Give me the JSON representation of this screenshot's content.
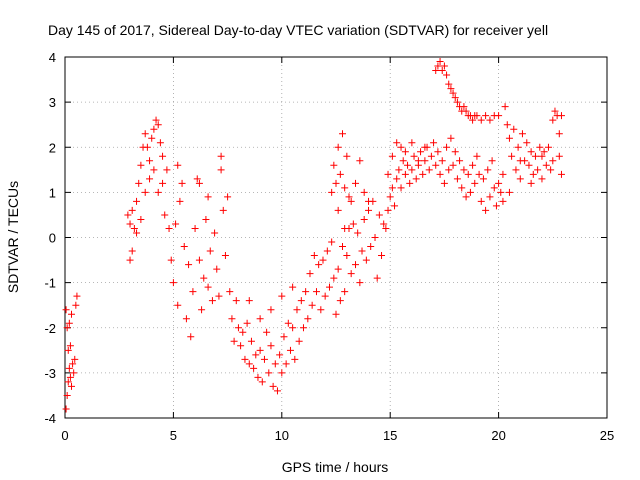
{
  "chart_data": {
    "type": "scatter",
    "title": "Day 145 of 2017, Sidereal Day-to-day VTEC variation (SDTVAR) for receiver yell",
    "xlabel": "GPS time / hours",
    "ylabel": "SDTVAR / TECUs",
    "xlim": [
      0,
      25
    ],
    "ylim": [
      -4,
      4
    ],
    "x_ticks": [
      "0",
      "5",
      "10",
      "15",
      "20",
      "25"
    ],
    "y_ticks": [
      "-4",
      "-3",
      "-2",
      "-1",
      "0",
      "1",
      "2",
      "3",
      "4"
    ],
    "grid": true,
    "marker": "+",
    "color": "#ff0000",
    "series": [
      {
        "name": "SDTVAR",
        "points": [
          [
            0.05,
            -3.8
          ],
          [
            0.1,
            -3.5
          ],
          [
            0.15,
            -3.2
          ],
          [
            0.2,
            -2.9
          ],
          [
            0.25,
            -3.1
          ],
          [
            0.3,
            -3.3
          ],
          [
            0.35,
            -2.8
          ],
          [
            0.4,
            -3.0
          ],
          [
            0.45,
            -2.7
          ],
          [
            0.1,
            -2.0
          ],
          [
            0.2,
            -1.9
          ],
          [
            0.3,
            -1.7
          ],
          [
            0.5,
            -1.5
          ],
          [
            0.55,
            -1.3
          ],
          [
            0.05,
            -1.6
          ],
          [
            0.15,
            -2.5
          ],
          [
            0.25,
            -2.4
          ],
          [
            2.9,
            0.5
          ],
          [
            3.0,
            0.3
          ],
          [
            3.1,
            0.6
          ],
          [
            3.2,
            0.2
          ],
          [
            3.3,
            0.8
          ],
          [
            3.4,
            1.2
          ],
          [
            3.5,
            1.6
          ],
          [
            3.6,
            2.0
          ],
          [
            3.7,
            2.3
          ],
          [
            3.8,
            2.0
          ],
          [
            3.9,
            1.7
          ],
          [
            4.0,
            2.2
          ],
          [
            4.1,
            2.4
          ],
          [
            4.2,
            2.6
          ],
          [
            4.3,
            2.5
          ],
          [
            4.4,
            2.1
          ],
          [
            4.5,
            1.8
          ],
          [
            3.0,
            -0.5
          ],
          [
            3.1,
            -0.3
          ],
          [
            3.3,
            0.1
          ],
          [
            3.5,
            0.4
          ],
          [
            3.7,
            1.0
          ],
          [
            3.9,
            1.3
          ],
          [
            4.1,
            1.5
          ],
          [
            4.3,
            1.0
          ],
          [
            4.5,
            1.2
          ],
          [
            4.6,
            0.5
          ],
          [
            4.7,
            1.5
          ],
          [
            4.8,
            0.2
          ],
          [
            4.9,
            -0.5
          ],
          [
            5.0,
            -1.0
          ],
          [
            5.1,
            0.3
          ],
          [
            5.2,
            -1.5
          ],
          [
            5.3,
            0.8
          ],
          [
            5.4,
            1.2
          ],
          [
            5.5,
            -0.2
          ],
          [
            5.6,
            -1.8
          ],
          [
            5.7,
            -0.6
          ],
          [
            5.8,
            -2.2
          ],
          [
            5.9,
            -1.2
          ],
          [
            6.0,
            0.2
          ],
          [
            6.1,
            1.3
          ],
          [
            6.2,
            -0.5
          ],
          [
            6.3,
            -1.6
          ],
          [
            6.4,
            -0.9
          ],
          [
            6.5,
            0.4
          ],
          [
            6.6,
            -1.1
          ],
          [
            6.7,
            -0.3
          ],
          [
            6.8,
            -1.4
          ],
          [
            6.9,
            0.1
          ],
          [
            7.0,
            -0.7
          ],
          [
            7.1,
            -1.3
          ],
          [
            7.2,
            1.5
          ],
          [
            7.3,
            0.6
          ],
          [
            7.4,
            -0.4
          ],
          [
            7.5,
            0.9
          ],
          [
            7.6,
            -1.2
          ],
          [
            7.7,
            -1.8
          ],
          [
            7.8,
            -2.3
          ],
          [
            5.2,
            1.6
          ],
          [
            6.2,
            1.2
          ],
          [
            7.2,
            1.8
          ],
          [
            6.6,
            0.9
          ],
          [
            7.9,
            -1.4
          ],
          [
            8.0,
            -2.0
          ],
          [
            8.1,
            -2.4
          ],
          [
            8.2,
            -2.1
          ],
          [
            8.3,
            -2.7
          ],
          [
            8.4,
            -1.9
          ],
          [
            8.5,
            -2.8
          ],
          [
            8.6,
            -2.3
          ],
          [
            8.7,
            -2.9
          ],
          [
            8.8,
            -2.6
          ],
          [
            8.9,
            -3.1
          ],
          [
            9.0,
            -2.5
          ],
          [
            9.1,
            -3.2
          ],
          [
            9.2,
            -2.7
          ],
          [
            9.3,
            -2.1
          ],
          [
            9.4,
            -3.0
          ],
          [
            9.5,
            -2.4
          ],
          [
            9.6,
            -3.3
          ],
          [
            9.7,
            -2.8
          ],
          [
            9.8,
            -3.4
          ],
          [
            9.9,
            -2.6
          ],
          [
            10.0,
            -3.0
          ],
          [
            10.1,
            -2.2
          ],
          [
            10.2,
            -2.8
          ],
          [
            10.3,
            -1.9
          ],
          [
            10.4,
            -2.5
          ],
          [
            10.5,
            -2.0
          ],
          [
            10.6,
            -2.7
          ],
          [
            10.7,
            -1.6
          ],
          [
            10.8,
            -2.3
          ],
          [
            10.9,
            -1.4
          ],
          [
            11.0,
            -2.0
          ],
          [
            8.5,
            -1.4
          ],
          [
            9.0,
            -1.8
          ],
          [
            9.5,
            -1.6
          ],
          [
            10.0,
            -1.3
          ],
          [
            10.5,
            -1.1
          ],
          [
            11.1,
            -1.2
          ],
          [
            11.2,
            -1.8
          ],
          [
            11.3,
            -0.8
          ],
          [
            11.4,
            -1.5
          ],
          [
            11.5,
            -0.4
          ],
          [
            11.6,
            -1.2
          ],
          [
            11.7,
            -0.6
          ],
          [
            11.8,
            -1.6
          ],
          [
            11.9,
            -0.5
          ],
          [
            12.0,
            -1.3
          ],
          [
            12.1,
            -0.3
          ],
          [
            12.2,
            -1.1
          ],
          [
            12.3,
            -0.1
          ],
          [
            12.4,
            -0.9
          ],
          [
            12.5,
            -1.7
          ],
          [
            12.6,
            -0.7
          ],
          [
            12.7,
            -1.4
          ],
          [
            12.8,
            -0.2
          ],
          [
            12.9,
            -1.2
          ],
          [
            13.0,
            -0.4
          ],
          [
            13.1,
            0.2
          ],
          [
            13.2,
            -0.8
          ],
          [
            13.3,
            0.3
          ],
          [
            13.4,
            -0.6
          ],
          [
            13.5,
            0.1
          ],
          [
            13.6,
            -1.0
          ],
          [
            13.7,
            -0.3
          ],
          [
            13.8,
            0.4
          ],
          [
            13.9,
            -0.5
          ],
          [
            14.0,
            0.6
          ],
          [
            14.1,
            -0.2
          ],
          [
            14.2,
            0.8
          ],
          [
            14.3,
            0.0
          ],
          [
            14.4,
            -0.9
          ],
          [
            14.5,
            0.5
          ],
          [
            14.6,
            -0.4
          ],
          [
            14.7,
            0.3
          ],
          [
            12.3,
            1.0
          ],
          [
            12.4,
            1.6
          ],
          [
            12.5,
            1.2
          ],
          [
            12.6,
            2.0
          ],
          [
            12.7,
            1.4
          ],
          [
            12.8,
            2.3
          ],
          [
            12.9,
            1.1
          ],
          [
            13.0,
            1.8
          ],
          [
            13.1,
            0.9
          ],
          [
            12.6,
            0.6
          ],
          [
            12.9,
            0.2
          ],
          [
            13.2,
            0.8
          ],
          [
            13.4,
            1.2
          ],
          [
            13.6,
            1.7
          ],
          [
            13.8,
            1.0
          ],
          [
            14.0,
            0.8
          ],
          [
            14.8,
            0.2
          ],
          [
            14.9,
            0.6
          ],
          [
            15.0,
            0.9
          ],
          [
            15.1,
            1.1
          ],
          [
            15.2,
            0.7
          ],
          [
            15.3,
            1.3
          ],
          [
            15.4,
            1.5
          ],
          [
            15.5,
            1.1
          ],
          [
            15.6,
            1.7
          ],
          [
            15.7,
            1.4
          ],
          [
            15.8,
            1.6
          ],
          [
            15.9,
            1.2
          ],
          [
            16.0,
            1.5
          ],
          [
            16.1,
            1.8
          ],
          [
            16.2,
            1.3
          ],
          [
            16.3,
            1.6
          ],
          [
            16.4,
            1.9
          ],
          [
            16.5,
            1.4
          ],
          [
            16.6,
            1.7
          ],
          [
            16.7,
            2.0
          ],
          [
            16.8,
            1.5
          ],
          [
            16.9,
            1.8
          ],
          [
            17.0,
            2.1
          ],
          [
            17.1,
            1.6
          ],
          [
            17.2,
            1.9
          ],
          [
            17.3,
            1.4
          ],
          [
            17.4,
            1.7
          ],
          [
            17.5,
            1.2
          ],
          [
            17.6,
            2.0
          ],
          [
            17.7,
            1.5
          ],
          [
            17.8,
            2.2
          ],
          [
            17.9,
            1.6
          ],
          [
            18.0,
            1.9
          ],
          [
            18.1,
            1.3
          ],
          [
            18.2,
            1.7
          ],
          [
            18.3,
            1.1
          ],
          [
            18.4,
            1.5
          ],
          [
            18.5,
            0.9
          ],
          [
            18.6,
            1.4
          ],
          [
            18.7,
            1.0
          ],
          [
            18.8,
            1.6
          ],
          [
            18.9,
            1.2
          ],
          [
            19.0,
            1.8
          ],
          [
            19.1,
            1.4
          ],
          [
            19.2,
            0.8
          ],
          [
            19.3,
            1.3
          ],
          [
            19.4,
            0.6
          ],
          [
            19.5,
            1.5
          ],
          [
            19.6,
            0.9
          ],
          [
            19.7,
            1.7
          ],
          [
            19.8,
            1.1
          ],
          [
            19.9,
            0.7
          ],
          [
            20.0,
            1.2
          ],
          [
            14.9,
            1.4
          ],
          [
            15.1,
            1.8
          ],
          [
            15.3,
            2.1
          ],
          [
            15.5,
            2.0
          ],
          [
            15.7,
            1.9
          ],
          [
            16.0,
            2.1
          ],
          [
            16.3,
            1.7
          ],
          [
            16.6,
            2.0
          ],
          [
            17.1,
            3.7
          ],
          [
            17.2,
            3.8
          ],
          [
            17.3,
            3.9
          ],
          [
            17.4,
            3.7
          ],
          [
            17.5,
            3.8
          ],
          [
            17.6,
            3.6
          ],
          [
            17.7,
            3.4
          ],
          [
            17.8,
            3.3
          ],
          [
            17.9,
            3.2
          ],
          [
            18.0,
            3.1
          ],
          [
            18.1,
            3.0
          ],
          [
            18.2,
            2.9
          ],
          [
            18.3,
            2.8
          ],
          [
            18.4,
            2.9
          ],
          [
            18.5,
            2.8
          ],
          [
            18.6,
            2.7
          ],
          [
            18.7,
            2.7
          ],
          [
            18.8,
            2.6
          ],
          [
            18.9,
            2.7
          ],
          [
            19.0,
            2.7
          ],
          [
            19.2,
            2.6
          ],
          [
            19.4,
            2.7
          ],
          [
            19.6,
            2.6
          ],
          [
            19.8,
            2.7
          ],
          [
            20.0,
            2.7
          ],
          [
            20.1,
            1.0
          ],
          [
            20.2,
            1.4
          ],
          [
            20.3,
            2.9
          ],
          [
            20.4,
            2.5
          ],
          [
            20.5,
            2.2
          ],
          [
            20.6,
            1.8
          ],
          [
            20.7,
            2.4
          ],
          [
            20.8,
            1.5
          ],
          [
            20.9,
            2.0
          ],
          [
            21.0,
            1.3
          ],
          [
            21.1,
            2.3
          ],
          [
            21.2,
            1.7
          ],
          [
            21.3,
            2.1
          ],
          [
            21.4,
            1.6
          ],
          [
            21.5,
            1.9
          ],
          [
            21.6,
            1.4
          ],
          [
            21.7,
            1.8
          ],
          [
            21.8,
            1.5
          ],
          [
            21.9,
            2.0
          ],
          [
            22.0,
            1.3
          ],
          [
            22.1,
            1.9
          ],
          [
            22.2,
            1.6
          ],
          [
            22.3,
            2.0
          ],
          [
            22.4,
            1.5
          ],
          [
            22.5,
            2.6
          ],
          [
            22.6,
            2.8
          ],
          [
            22.7,
            2.7
          ],
          [
            22.8,
            1.8
          ],
          [
            22.9,
            1.4
          ],
          [
            20.2,
            0.8
          ],
          [
            20.5,
            1.0
          ],
          [
            21.0,
            1.7
          ],
          [
            21.5,
            1.2
          ],
          [
            22.0,
            1.8
          ],
          [
            22.5,
            1.7
          ],
          [
            22.8,
            2.3
          ],
          [
            22.9,
            2.7
          ]
        ]
      }
    ]
  }
}
